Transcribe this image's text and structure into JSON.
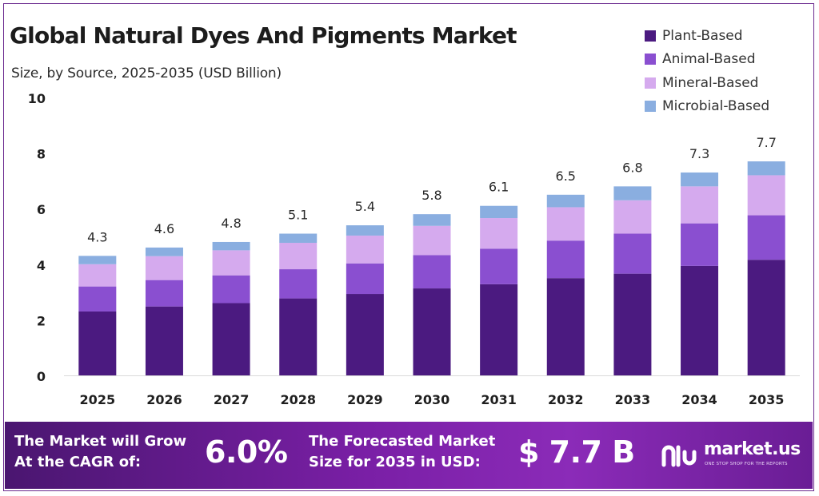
{
  "header": {
    "title": "Global Natural Dyes And Pigments Market",
    "subtitle": "Size, by Source, 2025-2035 (USD Billion)"
  },
  "legend": {
    "items": [
      {
        "label": "Plant-Based",
        "color": "#4b1a80"
      },
      {
        "label": "Animal-Based",
        "color": "#8a4fd0"
      },
      {
        "label": "Mineral-Based",
        "color": "#d5aaee"
      },
      {
        "label": "Microbial-Based",
        "color": "#8aaee0"
      }
    ]
  },
  "chart_data": {
    "type": "bar",
    "stacked": true,
    "categories": [
      "2025",
      "2026",
      "2027",
      "2028",
      "2029",
      "2030",
      "2031",
      "2032",
      "2033",
      "2034",
      "2035"
    ],
    "series": [
      {
        "name": "Plant-Based",
        "color": "#4b1a80",
        "values": [
          2.3,
          2.48,
          2.6,
          2.77,
          2.93,
          3.13,
          3.28,
          3.5,
          3.66,
          3.94,
          4.16
        ]
      },
      {
        "name": "Animal-Based",
        "color": "#8a4fd0",
        "values": [
          0.9,
          0.95,
          1.0,
          1.05,
          1.1,
          1.2,
          1.28,
          1.35,
          1.44,
          1.53,
          1.6
        ]
      },
      {
        "name": "Mineral-Based",
        "color": "#d5aaee",
        "values": [
          0.8,
          0.86,
          0.9,
          0.95,
          1.0,
          1.05,
          1.1,
          1.2,
          1.2,
          1.33,
          1.44
        ]
      },
      {
        "name": "Microbial-Based",
        "color": "#8aaee0",
        "values": [
          0.3,
          0.31,
          0.3,
          0.33,
          0.37,
          0.42,
          0.44,
          0.45,
          0.5,
          0.5,
          0.5
        ]
      }
    ],
    "totals": [
      4.3,
      4.6,
      4.8,
      5.1,
      5.4,
      5.8,
      6.1,
      6.5,
      6.8,
      7.3,
      7.7
    ],
    "total_labels": [
      "4.3",
      "4.6",
      "4.8",
      "5.1",
      "5.4",
      "5.8",
      "6.1",
      "6.5",
      "6.8",
      "7.3",
      "7.7"
    ],
    "ylim": [
      0,
      10
    ],
    "yticks": [
      0,
      2,
      4,
      6,
      8,
      10
    ],
    "ytick_labels": [
      "0",
      "2",
      "4",
      "6",
      "8",
      "10"
    ],
    "grid": false,
    "legend_position": "top-right",
    "xlabel": "",
    "ylabel": ""
  },
  "footer": {
    "cagr_text_line1": "The Market will Grow",
    "cagr_text_line2": "At the CAGR of:",
    "cagr_value": "6.0%",
    "forecast_text_line1": "The Forecasted Market",
    "forecast_text_line2": "Size for 2035 in USD:",
    "forecast_value": "$ 7.7 B",
    "brand_name": "market.us",
    "brand_tagline": "ONE STOP SHOP FOR THE REPORTS",
    "brand_icon": "market-us-logo-icon",
    "background_color": "#7a1fa6"
  },
  "frame": {
    "border_color": "#6b2a8f"
  }
}
